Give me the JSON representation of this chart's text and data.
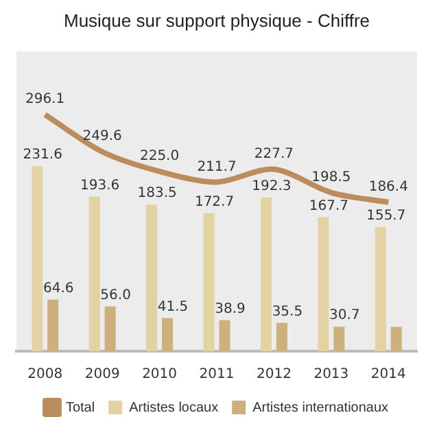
{
  "chart_data": {
    "type": "bar",
    "title": "Musique sur support physique - Chiffre",
    "categories": [
      "2008",
      "2009",
      "2010",
      "2011",
      "2012",
      "2013",
      "2014"
    ],
    "series": [
      {
        "name": "Artistes locaux",
        "color": "#e3d3a3",
        "values": [
          231.6,
          193.6,
          183.5,
          172.7,
          192.3,
          167.7,
          155.7
        ]
      },
      {
        "name": "Artistes internationaux",
        "color": "#cdb07c",
        "values": [
          64.6,
          56.0,
          41.5,
          38.9,
          35.5,
          30.7,
          30.5
        ],
        "value_labels": [
          "64.6",
          "56.0",
          "41.5",
          "38.9",
          "35.5",
          "30.7",
          null
        ]
      },
      {
        "name": "Total",
        "type": "line",
        "color": "#bb8c5c",
        "values": [
          296.1,
          249.6,
          225.0,
          211.7,
          227.7,
          198.5,
          186.4
        ],
        "value_labels": [
          "296.1",
          "249.6",
          "225.0",
          "211.7",
          "227.7",
          "198.5",
          "186.4"
        ]
      }
    ],
    "ylim": [
      0,
      375
    ],
    "data_labels": true,
    "legend": "bottom"
  }
}
